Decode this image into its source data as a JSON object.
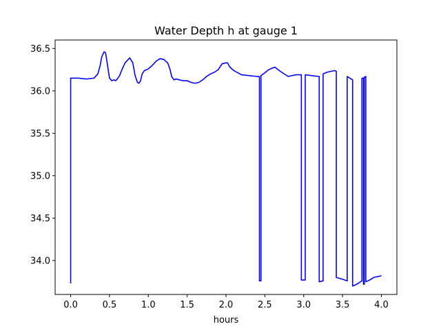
{
  "chart_data": {
    "type": "line",
    "title": "Water Depth h at gauge 1",
    "xlabel": "hours",
    "ylabel": "",
    "xlim": [
      -0.2,
      4.2
    ],
    "ylim": [
      33.6,
      36.6
    ],
    "xticks": [
      0.0,
      0.5,
      1.0,
      1.5,
      2.0,
      2.5,
      3.0,
      3.5,
      4.0
    ],
    "xtick_labels": [
      "0.0",
      "0.5",
      "1.0",
      "1.5",
      "2.0",
      "2.5",
      "3.0",
      "3.5",
      "4.0"
    ],
    "yticks": [
      34.0,
      34.5,
      35.0,
      35.5,
      36.0,
      36.5
    ],
    "ytick_labels": [
      "34.0",
      "34.5",
      "35.0",
      "35.5",
      "36.0",
      "36.5"
    ],
    "grid": false,
    "series": [
      {
        "color": "#0000ff",
        "x": [
          0.0,
          0.0,
          0.1,
          0.2,
          0.3,
          0.35,
          0.38,
          0.4,
          0.43,
          0.45,
          0.47,
          0.5,
          0.53,
          0.56,
          0.58,
          0.6,
          0.63,
          0.66,
          0.7,
          0.73,
          0.76,
          0.8,
          0.83,
          0.86,
          0.88,
          0.9,
          0.92,
          0.95,
          0.98,
          1.0,
          1.05,
          1.1,
          1.15,
          1.2,
          1.25,
          1.28,
          1.3,
          1.33,
          1.36,
          1.4,
          1.45,
          1.5,
          1.55,
          1.6,
          1.65,
          1.7,
          1.75,
          1.8,
          1.85,
          1.9,
          1.95,
          2.0,
          2.02,
          2.05,
          2.1,
          2.2,
          2.3,
          2.4,
          2.43,
          2.43,
          2.45,
          2.45,
          2.48,
          2.55,
          2.6,
          2.63,
          2.7,
          2.8,
          2.9,
          2.97,
          2.97,
          3.02,
          3.02,
          3.1,
          3.2,
          3.2,
          3.25,
          3.25,
          3.3,
          3.4,
          3.42,
          3.42,
          3.5,
          3.56,
          3.56,
          3.63,
          3.63,
          3.66,
          3.7,
          3.75,
          3.75,
          3.77,
          3.77,
          3.78,
          3.78,
          3.8,
          3.8,
          3.85,
          3.9,
          4.0
        ],
        "values": [
          33.73,
          36.15,
          36.15,
          36.14,
          36.15,
          36.2,
          36.3,
          36.4,
          36.46,
          36.45,
          36.33,
          36.15,
          36.12,
          36.13,
          36.12,
          36.14,
          36.18,
          36.25,
          36.33,
          36.36,
          36.39,
          36.33,
          36.18,
          36.1,
          36.09,
          36.12,
          36.2,
          36.24,
          36.25,
          36.26,
          36.3,
          36.35,
          36.38,
          36.37,
          36.33,
          36.25,
          36.17,
          36.13,
          36.14,
          36.13,
          36.12,
          36.12,
          36.1,
          36.09,
          36.1,
          36.13,
          36.17,
          36.2,
          36.22,
          36.25,
          36.32,
          36.33,
          36.33,
          36.28,
          36.24,
          36.19,
          36.18,
          36.17,
          36.17,
          33.76,
          33.76,
          36.18,
          36.2,
          36.25,
          36.27,
          36.28,
          36.23,
          36.17,
          36.19,
          36.19,
          33.77,
          33.77,
          36.19,
          36.18,
          36.17,
          33.75,
          33.76,
          36.2,
          36.22,
          36.24,
          36.23,
          33.8,
          33.78,
          33.76,
          36.17,
          36.13,
          33.7,
          33.71,
          33.73,
          33.76,
          36.15,
          36.15,
          33.72,
          33.72,
          36.16,
          36.17,
          33.75,
          33.77,
          33.8,
          33.82
        ]
      }
    ]
  }
}
